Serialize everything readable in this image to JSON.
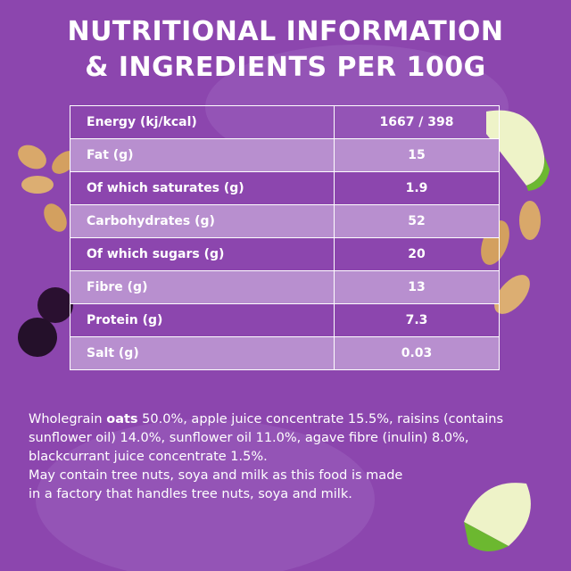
{
  "header": {
    "title_lines": [
      "NUTRITIONAL INFORMATION",
      "& INGREDIENTS PER 100G"
    ]
  },
  "table": {
    "rows": [
      [
        "Energy (kj/kcal)",
        "1667 / 398"
      ],
      [
        "Fat (g)",
        "15"
      ],
      [
        "Of which saturates (g)",
        "1.9"
      ],
      [
        "Carbohydrates (g)",
        "52"
      ],
      [
        "Of which sugars (g)",
        "20"
      ],
      [
        "Fibre (g)",
        "13"
      ],
      [
        "Protein (g)",
        "7.3"
      ],
      [
        "Salt (g)",
        "0.03"
      ]
    ]
  },
  "ingredients": {
    "first_line": {
      "before": "Wholegrain ",
      "bold": "oats",
      "after": " 50.0%, apple juice concentrate 15.5%, raisins (contains"
    },
    "lines": [
      "sunflower oil) 14.0%, sunflower oil 11.0%, agave fibre (inulin) 8.0%,",
      "blackcurrant juice concentrate 1.5%.",
      "May contain tree nuts, soya and milk as this food is made",
      "in a factory that handles tree nuts, soya and milk."
    ]
  }
}
